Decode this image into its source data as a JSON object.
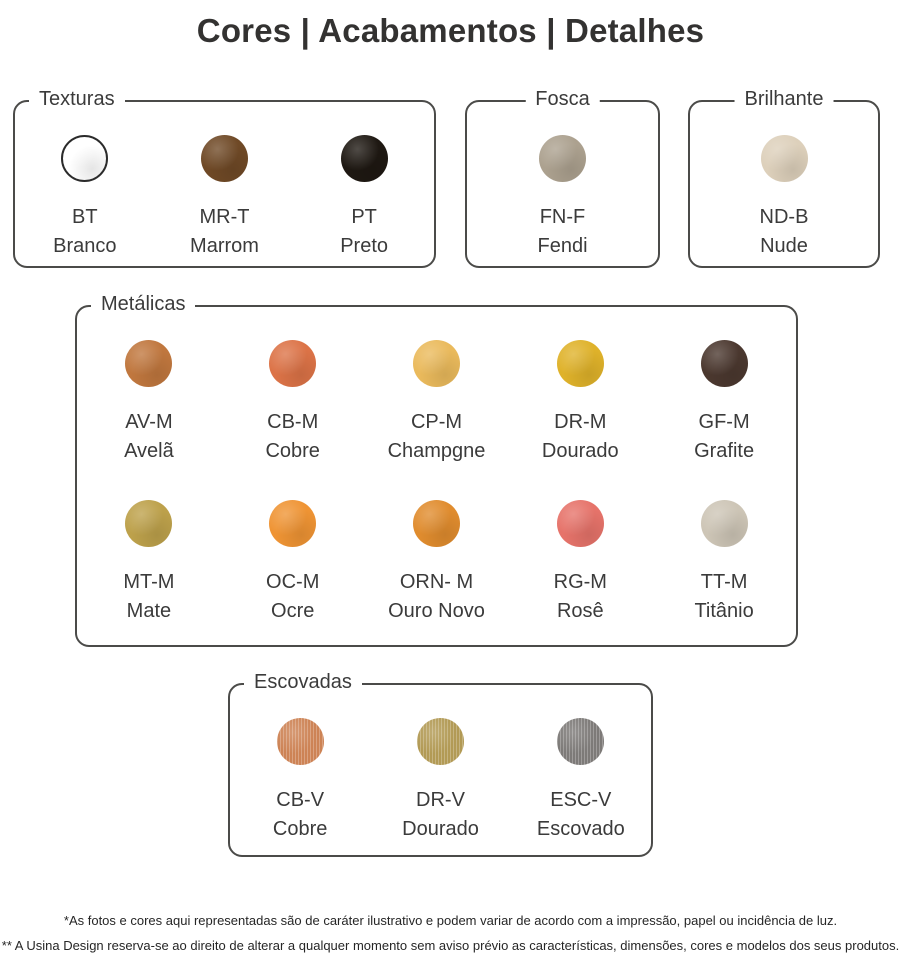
{
  "title": "Cores | Acabamentos | Detalhes",
  "colors": {
    "text": "#3b3b3b",
    "box_border": "#4b4b49",
    "background": "#ffffff"
  },
  "sections": [
    {
      "key": "texturas",
      "label": "Texturas",
      "label_align": "left",
      "swatches": [
        {
          "code": "BT",
          "name": "Branco",
          "color": "#ffffff",
          "outline": "#2b2b2b"
        },
        {
          "code": "MR-T",
          "name": "Marrom",
          "color": "#6f4926"
        },
        {
          "code": "PT",
          "name": "Preto",
          "color": "#1e1812"
        }
      ]
    },
    {
      "key": "fosca",
      "label": "Fosca",
      "label_align": "center",
      "swatches": [
        {
          "code": "FN-F",
          "name": "Fendi",
          "color": "#aca18f"
        }
      ]
    },
    {
      "key": "brilhante",
      "label": "Brilhante",
      "label_align": "center",
      "swatches": [
        {
          "code": "ND-B",
          "name": "Nude",
          "color": "#ddd0bb"
        }
      ]
    },
    {
      "key": "metalicas",
      "label": "Metálicas",
      "label_align": "left",
      "swatches": [
        {
          "code": "AV-M",
          "name": "Avelã",
          "color": "#c0773e"
        },
        {
          "code": "CB-M",
          "name": "Cobre",
          "color": "#dc7347"
        },
        {
          "code": "CP-M",
          "name": "Champgne",
          "color": "#eaba5c"
        },
        {
          "code": "DR-M",
          "name": "Dourado",
          "color": "#dfb22a"
        },
        {
          "code": "GF-M",
          "name": "Grafite",
          "color": "#4b382f"
        },
        {
          "code": "MT-M",
          "name": "Mate",
          "color": "#bda14b"
        },
        {
          "code": "OC-M",
          "name": "Ocre",
          "color": "#ef9434"
        },
        {
          "code": "ORN- M",
          "name": "Ouro Novo",
          "color": "#e08c2e"
        },
        {
          "code": "RG-M",
          "name": "Rosê",
          "color": "#e6736a"
        },
        {
          "code": "TT-M",
          "name": "Titânio",
          "color": "#cdc5b6"
        }
      ]
    },
    {
      "key": "escovadas",
      "label": "Escovadas",
      "label_align": "left",
      "swatches": [
        {
          "code": "CB-V",
          "name": "Cobre",
          "color": "#cd8355"
        },
        {
          "code": "DR-V",
          "name": "Dourado",
          "color": "#b29a55"
        },
        {
          "code": "ESC-V",
          "name": "Escovado",
          "color": "#7d7a78"
        }
      ]
    }
  ],
  "footnotes": [
    "*As fotos e cores aqui representadas são de caráter ilustrativo e podem variar de acordo com a impressão, papel ou incidência de luz.",
    "** A Usina Design reserva-se ao direito de alterar a qualquer momento sem aviso prévio as características, dimensões, cores e modelos dos seus produtos."
  ]
}
